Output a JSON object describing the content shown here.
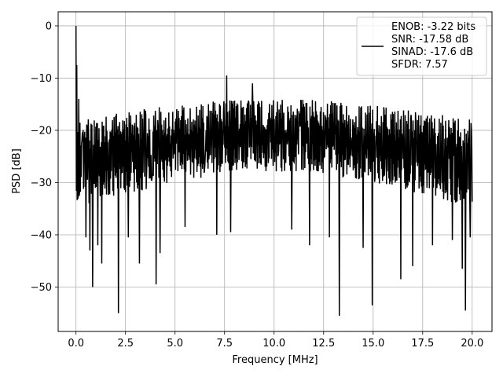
{
  "chart_data": {
    "type": "line",
    "title": "",
    "xlabel": "Frequency [MHz]",
    "ylabel": "PSD [dB]",
    "xlim": [
      -0.9,
      21.0
    ],
    "ylim": [
      -58.5,
      2.7
    ],
    "xticks": [
      0.0,
      2.5,
      5.0,
      7.5,
      10.0,
      12.5,
      15.0,
      17.5,
      20.0
    ],
    "xtick_labels": [
      "0.0",
      "2.5",
      "5.0",
      "7.5",
      "10.0",
      "12.5",
      "15.0",
      "17.5",
      "20.0"
    ],
    "yticks": [
      0,
      -10,
      -20,
      -30,
      -40,
      -50
    ],
    "ytick_labels": [
      "0",
      "−10",
      "−20",
      "−30",
      "−40",
      "−50"
    ],
    "grid": true,
    "legend": {
      "placement": "top-right",
      "entries": [
        "ENOB: -3.22 bits",
        "SNR: -17.58 dB",
        "SINAD: -17.6 dB",
        "SFDR: 7.57"
      ]
    },
    "series": [
      {
        "color": "#000000",
        "x_range": [
          0.0,
          20.0
        ],
        "points": 1000,
        "noise_floor_db": -24,
        "band_upper_db": [
          -18,
          -14
        ],
        "band_lower_db": [
          -35,
          -28
        ],
        "peaks": [
          {
            "x": 0.0,
            "y": 0.0
          },
          {
            "x": 0.05,
            "y": -7.5
          },
          {
            "x": 0.15,
            "y": -14.0
          },
          {
            "x": 7.6,
            "y": -9.5
          },
          {
            "x": 8.9,
            "y": -11.0
          }
        ],
        "dips": [
          {
            "x": 0.5,
            "y": -40.5
          },
          {
            "x": 0.7,
            "y": -43.0
          },
          {
            "x": 0.85,
            "y": -50.0
          },
          {
            "x": 1.1,
            "y": -42.0
          },
          {
            "x": 1.3,
            "y": -45.5
          },
          {
            "x": 2.15,
            "y": -55.0
          },
          {
            "x": 2.65,
            "y": -40.5
          },
          {
            "x": 3.2,
            "y": -45.5
          },
          {
            "x": 4.05,
            "y": -49.5
          },
          {
            "x": 4.25,
            "y": -43.5
          },
          {
            "x": 5.5,
            "y": -38.5
          },
          {
            "x": 7.1,
            "y": -40.0
          },
          {
            "x": 7.8,
            "y": -39.5
          },
          {
            "x": 10.9,
            "y": -39.0
          },
          {
            "x": 11.8,
            "y": -42.0
          },
          {
            "x": 12.8,
            "y": -40.5
          },
          {
            "x": 13.3,
            "y": -55.5
          },
          {
            "x": 14.5,
            "y": -42.5
          },
          {
            "x": 14.95,
            "y": -53.5
          },
          {
            "x": 16.4,
            "y": -48.5
          },
          {
            "x": 17.0,
            "y": -46.0
          },
          {
            "x": 18.0,
            "y": -42.0
          },
          {
            "x": 19.0,
            "y": -41.0
          },
          {
            "x": 19.5,
            "y": -46.5
          },
          {
            "x": 19.65,
            "y": -54.5
          },
          {
            "x": 19.9,
            "y": -40.5
          }
        ]
      }
    ]
  }
}
